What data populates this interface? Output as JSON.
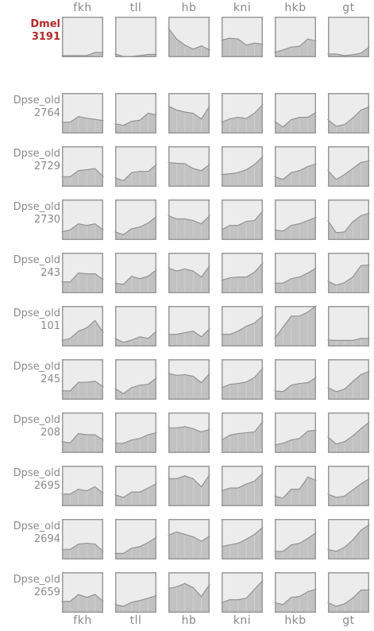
{
  "chart_data": {
    "type": "area",
    "genes": [
      "fkh",
      "tll",
      "hb",
      "kni",
      "hkb",
      "gt"
    ],
    "ylim": [
      0,
      1
    ],
    "grid": false,
    "colors": {
      "panel_bg": "#ececec",
      "fill": "#c2c2c2",
      "line": "#8e8e8e",
      "border": "#9a9a9a",
      "label": "#8a8a8a",
      "reference_label": "#b22a2a"
    },
    "rows": [
      {
        "name": "Dmel",
        "id": "3191",
        "reference": true,
        "series": [
          [
            0.04,
            0.04,
            0.04,
            0.04,
            0.12,
            0.12
          ],
          [
            0.08,
            0.02,
            0.02,
            0.04,
            0.07,
            0.07
          ],
          [
            0.72,
            0.45,
            0.3,
            0.2,
            0.28,
            0.18
          ],
          [
            0.42,
            0.47,
            0.45,
            0.3,
            0.35,
            0.32
          ],
          [
            0.12,
            0.18,
            0.25,
            0.27,
            0.45,
            0.4
          ],
          [
            0.08,
            0.08,
            0.04,
            0.06,
            0.1,
            0.25
          ]
        ]
      },
      {
        "name": "Dpse_old",
        "id": "2764",
        "reference": false,
        "series": [
          [
            0.28,
            0.28,
            0.42,
            0.38,
            0.35,
            0.32
          ],
          [
            0.24,
            0.2,
            0.3,
            0.33,
            0.5,
            0.46
          ],
          [
            0.68,
            0.58,
            0.53,
            0.5,
            0.36,
            0.68
          ],
          [
            0.28,
            0.36,
            0.4,
            0.37,
            0.5,
            0.72
          ],
          [
            0.3,
            0.16,
            0.34,
            0.4,
            0.4,
            0.52
          ],
          [
            0.34,
            0.18,
            0.22,
            0.38,
            0.58,
            0.66
          ]
        ]
      },
      {
        "name": "Dpse_old",
        "id": "2729",
        "reference": false,
        "series": [
          [
            0.25,
            0.25,
            0.4,
            0.42,
            0.45,
            0.25
          ],
          [
            0.22,
            0.15,
            0.35,
            0.38,
            0.38,
            0.55
          ],
          [
            0.6,
            0.58,
            0.57,
            0.45,
            0.4,
            0.55
          ],
          [
            0.3,
            0.32,
            0.35,
            0.42,
            0.55,
            0.75
          ],
          [
            0.25,
            0.18,
            0.35,
            0.4,
            0.5,
            0.56
          ],
          [
            0.4,
            0.18,
            0.3,
            0.45,
            0.6,
            0.64
          ]
        ]
      },
      {
        "name": "Dpse_old",
        "id": "2730",
        "reference": false,
        "series": [
          [
            0.2,
            0.25,
            0.4,
            0.36,
            0.4,
            0.25
          ],
          [
            0.2,
            0.13,
            0.28,
            0.32,
            0.42,
            0.58
          ],
          [
            0.6,
            0.52,
            0.52,
            0.48,
            0.4,
            0.6
          ],
          [
            0.25,
            0.36,
            0.36,
            0.46,
            0.48,
            0.72
          ],
          [
            0.25,
            0.22,
            0.36,
            0.4,
            0.48,
            0.56
          ],
          [
            0.48,
            0.18,
            0.2,
            0.45,
            0.6,
            0.66
          ]
        ]
      },
      {
        "name": "Dpse_old",
        "id": "243",
        "reference": false,
        "series": [
          [
            0.28,
            0.28,
            0.5,
            0.48,
            0.48,
            0.34
          ],
          [
            0.25,
            0.22,
            0.42,
            0.36,
            0.42,
            0.58
          ],
          [
            0.62,
            0.55,
            0.6,
            0.55,
            0.4,
            0.68
          ],
          [
            0.32,
            0.38,
            0.4,
            0.4,
            0.52,
            0.75
          ],
          [
            0.25,
            0.25,
            0.36,
            0.4,
            0.5,
            0.62
          ],
          [
            0.3,
            0.2,
            0.26,
            0.4,
            0.68,
            0.7
          ]
        ]
      },
      {
        "name": "Dpse_old",
        "id": "101",
        "reference": false,
        "series": [
          [
            0.15,
            0.2,
            0.38,
            0.46,
            0.64,
            0.35
          ],
          [
            0.2,
            0.1,
            0.16,
            0.24,
            0.2,
            0.38
          ],
          [
            0.3,
            0.3,
            0.34,
            0.38,
            0.24,
            0.44
          ],
          [
            0.3,
            0.3,
            0.38,
            0.5,
            0.58,
            0.76
          ],
          [
            0.2,
            0.48,
            0.75,
            0.75,
            0.85,
            1.0
          ],
          [
            0.16,
            0.15,
            0.15,
            0.15,
            0.2,
            0.2
          ]
        ]
      },
      {
        "name": "Dpse_old",
        "id": "245",
        "reference": false,
        "series": [
          [
            0.22,
            0.22,
            0.43,
            0.43,
            0.46,
            0.32
          ],
          [
            0.28,
            0.15,
            0.3,
            0.36,
            0.38,
            0.54
          ],
          [
            0.65,
            0.6,
            0.62,
            0.58,
            0.42,
            0.65
          ],
          [
            0.3,
            0.38,
            0.4,
            0.44,
            0.55,
            0.78
          ],
          [
            0.22,
            0.2,
            0.36,
            0.4,
            0.42,
            0.55
          ],
          [
            0.3,
            0.2,
            0.26,
            0.45,
            0.62,
            0.7
          ]
        ]
      },
      {
        "name": "Dpse_old",
        "id": "208",
        "reference": false,
        "series": [
          [
            0.28,
            0.25,
            0.48,
            0.45,
            0.45,
            0.32
          ],
          [
            0.24,
            0.24,
            0.32,
            0.36,
            0.45,
            0.5
          ],
          [
            0.62,
            0.62,
            0.65,
            0.6,
            0.52,
            0.58
          ],
          [
            0.32,
            0.44,
            0.48,
            0.5,
            0.52,
            0.78
          ],
          [
            0.2,
            0.24,
            0.32,
            0.36,
            0.54,
            0.56
          ],
          [
            0.4,
            0.22,
            0.28,
            0.42,
            0.6,
            0.76
          ]
        ]
      },
      {
        "name": "Dpse_old",
        "id": "2695",
        "reference": false,
        "series": [
          [
            0.3,
            0.3,
            0.42,
            0.38,
            0.48,
            0.32
          ],
          [
            0.28,
            0.22,
            0.35,
            0.35,
            0.45,
            0.56
          ],
          [
            0.68,
            0.68,
            0.75,
            0.68,
            0.48,
            0.78
          ],
          [
            0.38,
            0.45,
            0.45,
            0.55,
            0.62,
            0.82
          ],
          [
            0.25,
            0.2,
            0.42,
            0.42,
            0.72,
            0.64
          ],
          [
            0.3,
            0.22,
            0.25,
            0.4,
            0.55,
            0.68
          ]
        ]
      },
      {
        "name": "Dpse_old",
        "id": "2694",
        "reference": false,
        "series": [
          [
            0.25,
            0.25,
            0.38,
            0.4,
            0.38,
            0.2
          ],
          [
            0.15,
            0.15,
            0.28,
            0.32,
            0.42,
            0.55
          ],
          [
            0.6,
            0.68,
            0.62,
            0.56,
            0.45,
            0.58
          ],
          [
            0.32,
            0.36,
            0.4,
            0.5,
            0.62,
            0.8
          ],
          [
            0.2,
            0.2,
            0.36,
            0.4,
            0.52,
            0.66
          ],
          [
            0.25,
            0.2,
            0.3,
            0.48,
            0.72,
            0.86
          ]
        ]
      },
      {
        "name": "Dpse_old",
        "id": "2659",
        "reference": false,
        "series": [
          [
            0.28,
            0.28,
            0.45,
            0.38,
            0.45,
            0.28
          ],
          [
            0.2,
            0.16,
            0.26,
            0.3,
            0.36,
            0.42
          ],
          [
            0.6,
            0.64,
            0.72,
            0.62,
            0.4,
            0.7
          ],
          [
            0.25,
            0.32,
            0.32,
            0.36,
            0.58,
            0.8
          ],
          [
            0.25,
            0.2,
            0.38,
            0.4,
            0.52,
            0.58
          ],
          [
            0.25,
            0.16,
            0.22,
            0.36,
            0.56,
            0.56
          ]
        ]
      }
    ]
  }
}
